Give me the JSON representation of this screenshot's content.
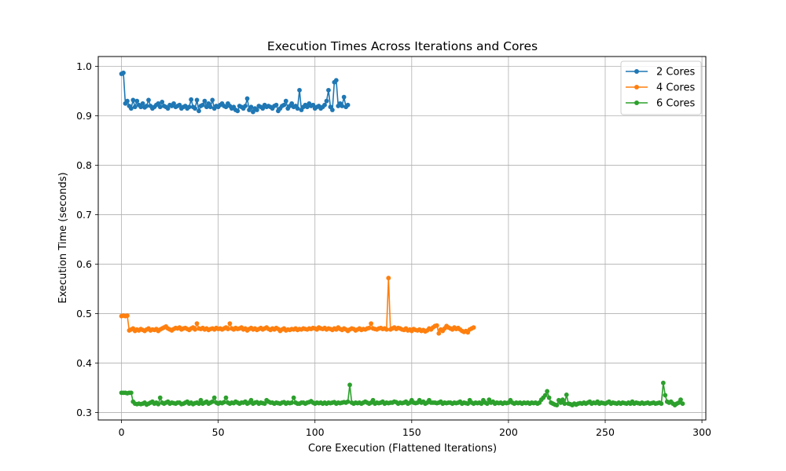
{
  "chart_data": {
    "type": "line",
    "title": "Execution Times Across Iterations and Cores",
    "xlabel": "Core Execution (Flattened Iterations)",
    "ylabel": "Execution Time (seconds)",
    "xlim": [
      -12,
      302
    ],
    "ylim": [
      0.285,
      1.02
    ],
    "xticks": [
      0,
      50,
      100,
      150,
      200,
      250,
      300
    ],
    "yticks": [
      0.3,
      0.4,
      0.5,
      0.6,
      0.7,
      0.8,
      0.9,
      1.0
    ],
    "xtick_labels": [
      "0",
      "50",
      "100",
      "150",
      "200",
      "250",
      "300"
    ],
    "ytick_labels": [
      "0.3",
      "0.4",
      "0.5",
      "0.6",
      "0.7",
      "0.8",
      "0.9",
      "1.0"
    ],
    "grid": true,
    "legend_position": "top-right",
    "marker": "circle",
    "series": [
      {
        "name": "2 Cores",
        "color": "#1f77b4",
        "x_start": 0,
        "values": [
          0.985,
          0.987,
          0.925,
          0.93,
          0.92,
          0.915,
          0.932,
          0.918,
          0.93,
          0.922,
          0.918,
          0.925,
          0.917,
          0.92,
          0.932,
          0.92,
          0.915,
          0.918,
          0.922,
          0.925,
          0.918,
          0.928,
          0.92,
          0.918,
          0.915,
          0.922,
          0.92,
          0.925,
          0.918,
          0.92,
          0.922,
          0.915,
          0.918,
          0.92,
          0.915,
          0.918,
          0.933,
          0.918,
          0.915,
          0.932,
          0.91,
          0.92,
          0.922,
          0.93,
          0.918,
          0.925,
          0.918,
          0.932,
          0.915,
          0.92,
          0.918,
          0.922,
          0.925,
          0.92,
          0.918,
          0.925,
          0.92,
          0.915,
          0.918,
          0.912,
          0.91,
          0.92,
          0.918,
          0.915,
          0.92,
          0.935,
          0.912,
          0.918,
          0.908,
          0.915,
          0.912,
          0.92,
          0.918,
          0.915,
          0.922,
          0.918,
          0.92,
          0.918,
          0.915,
          0.92,
          0.922,
          0.91,
          0.915,
          0.92,
          0.922,
          0.93,
          0.915,
          0.92,
          0.925,
          0.918,
          0.92,
          0.915,
          0.952,
          0.912,
          0.918,
          0.922,
          0.918,
          0.925,
          0.92,
          0.922,
          0.915,
          0.918,
          0.92,
          0.915,
          0.918,
          0.922,
          0.93,
          0.952,
          0.918,
          0.912,
          0.968,
          0.972,
          0.92,
          0.925,
          0.92,
          0.938,
          0.918,
          0.922
        ]
      },
      {
        "name": "4 Cores",
        "color": "#ff7f0e",
        "x_start": 0,
        "values": [
          0.495,
          0.496,
          0.495,
          0.496,
          0.466,
          0.468,
          0.47,
          0.465,
          0.468,
          0.466,
          0.469,
          0.467,
          0.465,
          0.468,
          0.47,
          0.466,
          0.468,
          0.467,
          0.469,
          0.465,
          0.468,
          0.47,
          0.472,
          0.474,
          0.47,
          0.468,
          0.466,
          0.469,
          0.471,
          0.47,
          0.472,
          0.468,
          0.47,
          0.471,
          0.469,
          0.467,
          0.47,
          0.472,
          0.468,
          0.48,
          0.47,
          0.469,
          0.471,
          0.468,
          0.47,
          0.467,
          0.469,
          0.47,
          0.468,
          0.471,
          0.469,
          0.47,
          0.468,
          0.47,
          0.472,
          0.469,
          0.48,
          0.47,
          0.468,
          0.471,
          0.469,
          0.47,
          0.472,
          0.468,
          0.47,
          0.466,
          0.469,
          0.471,
          0.468,
          0.47,
          0.467,
          0.469,
          0.471,
          0.468,
          0.47,
          0.472,
          0.469,
          0.467,
          0.47,
          0.468,
          0.471,
          0.469,
          0.465,
          0.468,
          0.47,
          0.466,
          0.468,
          0.467,
          0.469,
          0.468,
          0.47,
          0.467,
          0.469,
          0.468,
          0.47,
          0.469,
          0.468,
          0.47,
          0.469,
          0.471,
          0.47,
          0.468,
          0.472,
          0.47,
          0.469,
          0.471,
          0.468,
          0.47,
          0.469,
          0.467,
          0.47,
          0.468,
          0.472,
          0.469,
          0.467,
          0.47,
          0.468,
          0.465,
          0.468,
          0.47,
          0.469,
          0.466,
          0.468,
          0.47,
          0.467,
          0.469,
          0.468,
          0.47,
          0.471,
          0.48,
          0.47,
          0.469,
          0.468,
          0.47,
          0.471,
          0.469,
          0.47,
          0.468,
          0.572,
          0.468,
          0.47,
          0.472,
          0.469,
          0.471,
          0.47,
          0.468,
          0.467,
          0.47,
          0.466,
          0.468,
          0.465,
          0.469,
          0.467,
          0.466,
          0.468,
          0.465,
          0.467,
          0.464,
          0.466,
          0.47,
          0.468,
          0.472,
          0.475,
          0.476,
          0.46,
          0.468,
          0.465,
          0.47,
          0.475,
          0.472,
          0.47,
          0.468,
          0.472,
          0.469,
          0.471,
          0.468,
          0.465,
          0.463,
          0.465,
          0.462,
          0.468,
          0.47,
          0.472
        ]
      },
      {
        "name": "6 Cores",
        "color": "#2ca02c",
        "x_start": 0,
        "values": [
          0.34,
          0.34,
          0.34,
          0.339,
          0.34,
          0.34,
          0.322,
          0.318,
          0.317,
          0.318,
          0.317,
          0.318,
          0.32,
          0.316,
          0.318,
          0.32,
          0.322,
          0.318,
          0.32,
          0.317,
          0.33,
          0.32,
          0.318,
          0.32,
          0.322,
          0.318,
          0.32,
          0.319,
          0.318,
          0.32,
          0.32,
          0.317,
          0.318,
          0.32,
          0.322,
          0.318,
          0.32,
          0.317,
          0.319,
          0.32,
          0.318,
          0.325,
          0.318,
          0.32,
          0.322,
          0.318,
          0.32,
          0.322,
          0.33,
          0.32,
          0.318,
          0.32,
          0.319,
          0.321,
          0.33,
          0.32,
          0.318,
          0.32,
          0.319,
          0.322,
          0.32,
          0.318,
          0.32,
          0.32,
          0.322,
          0.318,
          0.32,
          0.325,
          0.318,
          0.32,
          0.321,
          0.318,
          0.32,
          0.319,
          0.318,
          0.325,
          0.322,
          0.32,
          0.32,
          0.318,
          0.32,
          0.319,
          0.318,
          0.32,
          0.321,
          0.318,
          0.32,
          0.319,
          0.32,
          0.33,
          0.32,
          0.318,
          0.318,
          0.32,
          0.32,
          0.318,
          0.32,
          0.321,
          0.323,
          0.32,
          0.318,
          0.32,
          0.319,
          0.32,
          0.318,
          0.32,
          0.318,
          0.32,
          0.319,
          0.32,
          0.321,
          0.318,
          0.32,
          0.319,
          0.32,
          0.321,
          0.32,
          0.322,
          0.356,
          0.32,
          0.318,
          0.32,
          0.319,
          0.32,
          0.318,
          0.32,
          0.322,
          0.32,
          0.318,
          0.32,
          0.325,
          0.318,
          0.32,
          0.319,
          0.32,
          0.322,
          0.318,
          0.32,
          0.319,
          0.32,
          0.32,
          0.322,
          0.321,
          0.318,
          0.32,
          0.319,
          0.32,
          0.322,
          0.318,
          0.32,
          0.325,
          0.32,
          0.319,
          0.32,
          0.325,
          0.32,
          0.322,
          0.318,
          0.32,
          0.325,
          0.32,
          0.32,
          0.32,
          0.319,
          0.32,
          0.322,
          0.318,
          0.32,
          0.319,
          0.32,
          0.32,
          0.318,
          0.32,
          0.319,
          0.32,
          0.322,
          0.318,
          0.32,
          0.319,
          0.318,
          0.325,
          0.32,
          0.318,
          0.32,
          0.319,
          0.32,
          0.318,
          0.325,
          0.32,
          0.318,
          0.326,
          0.32,
          0.322,
          0.318,
          0.32,
          0.319,
          0.32,
          0.318,
          0.32,
          0.319,
          0.32,
          0.325,
          0.32,
          0.318,
          0.32,
          0.319,
          0.32,
          0.318,
          0.32,
          0.319,
          0.32,
          0.318,
          0.32,
          0.319,
          0.32,
          0.318,
          0.32,
          0.326,
          0.33,
          0.335,
          0.343,
          0.33,
          0.32,
          0.318,
          0.316,
          0.315,
          0.325,
          0.32,
          0.326,
          0.318,
          0.336,
          0.318,
          0.317,
          0.315,
          0.318,
          0.316,
          0.318,
          0.319,
          0.318,
          0.32,
          0.318,
          0.32,
          0.322,
          0.318,
          0.32,
          0.319,
          0.322,
          0.318,
          0.32,
          0.319,
          0.318,
          0.32,
          0.322,
          0.318,
          0.32,
          0.319,
          0.318,
          0.32,
          0.318,
          0.32,
          0.319,
          0.318,
          0.32,
          0.318,
          0.322,
          0.318,
          0.32,
          0.319,
          0.318,
          0.32,
          0.318,
          0.319,
          0.32,
          0.318,
          0.319,
          0.32,
          0.318,
          0.319,
          0.32,
          0.318,
          0.36,
          0.335,
          0.322,
          0.32,
          0.322,
          0.318,
          0.315,
          0.318,
          0.32,
          0.326,
          0.318
        ]
      }
    ]
  }
}
